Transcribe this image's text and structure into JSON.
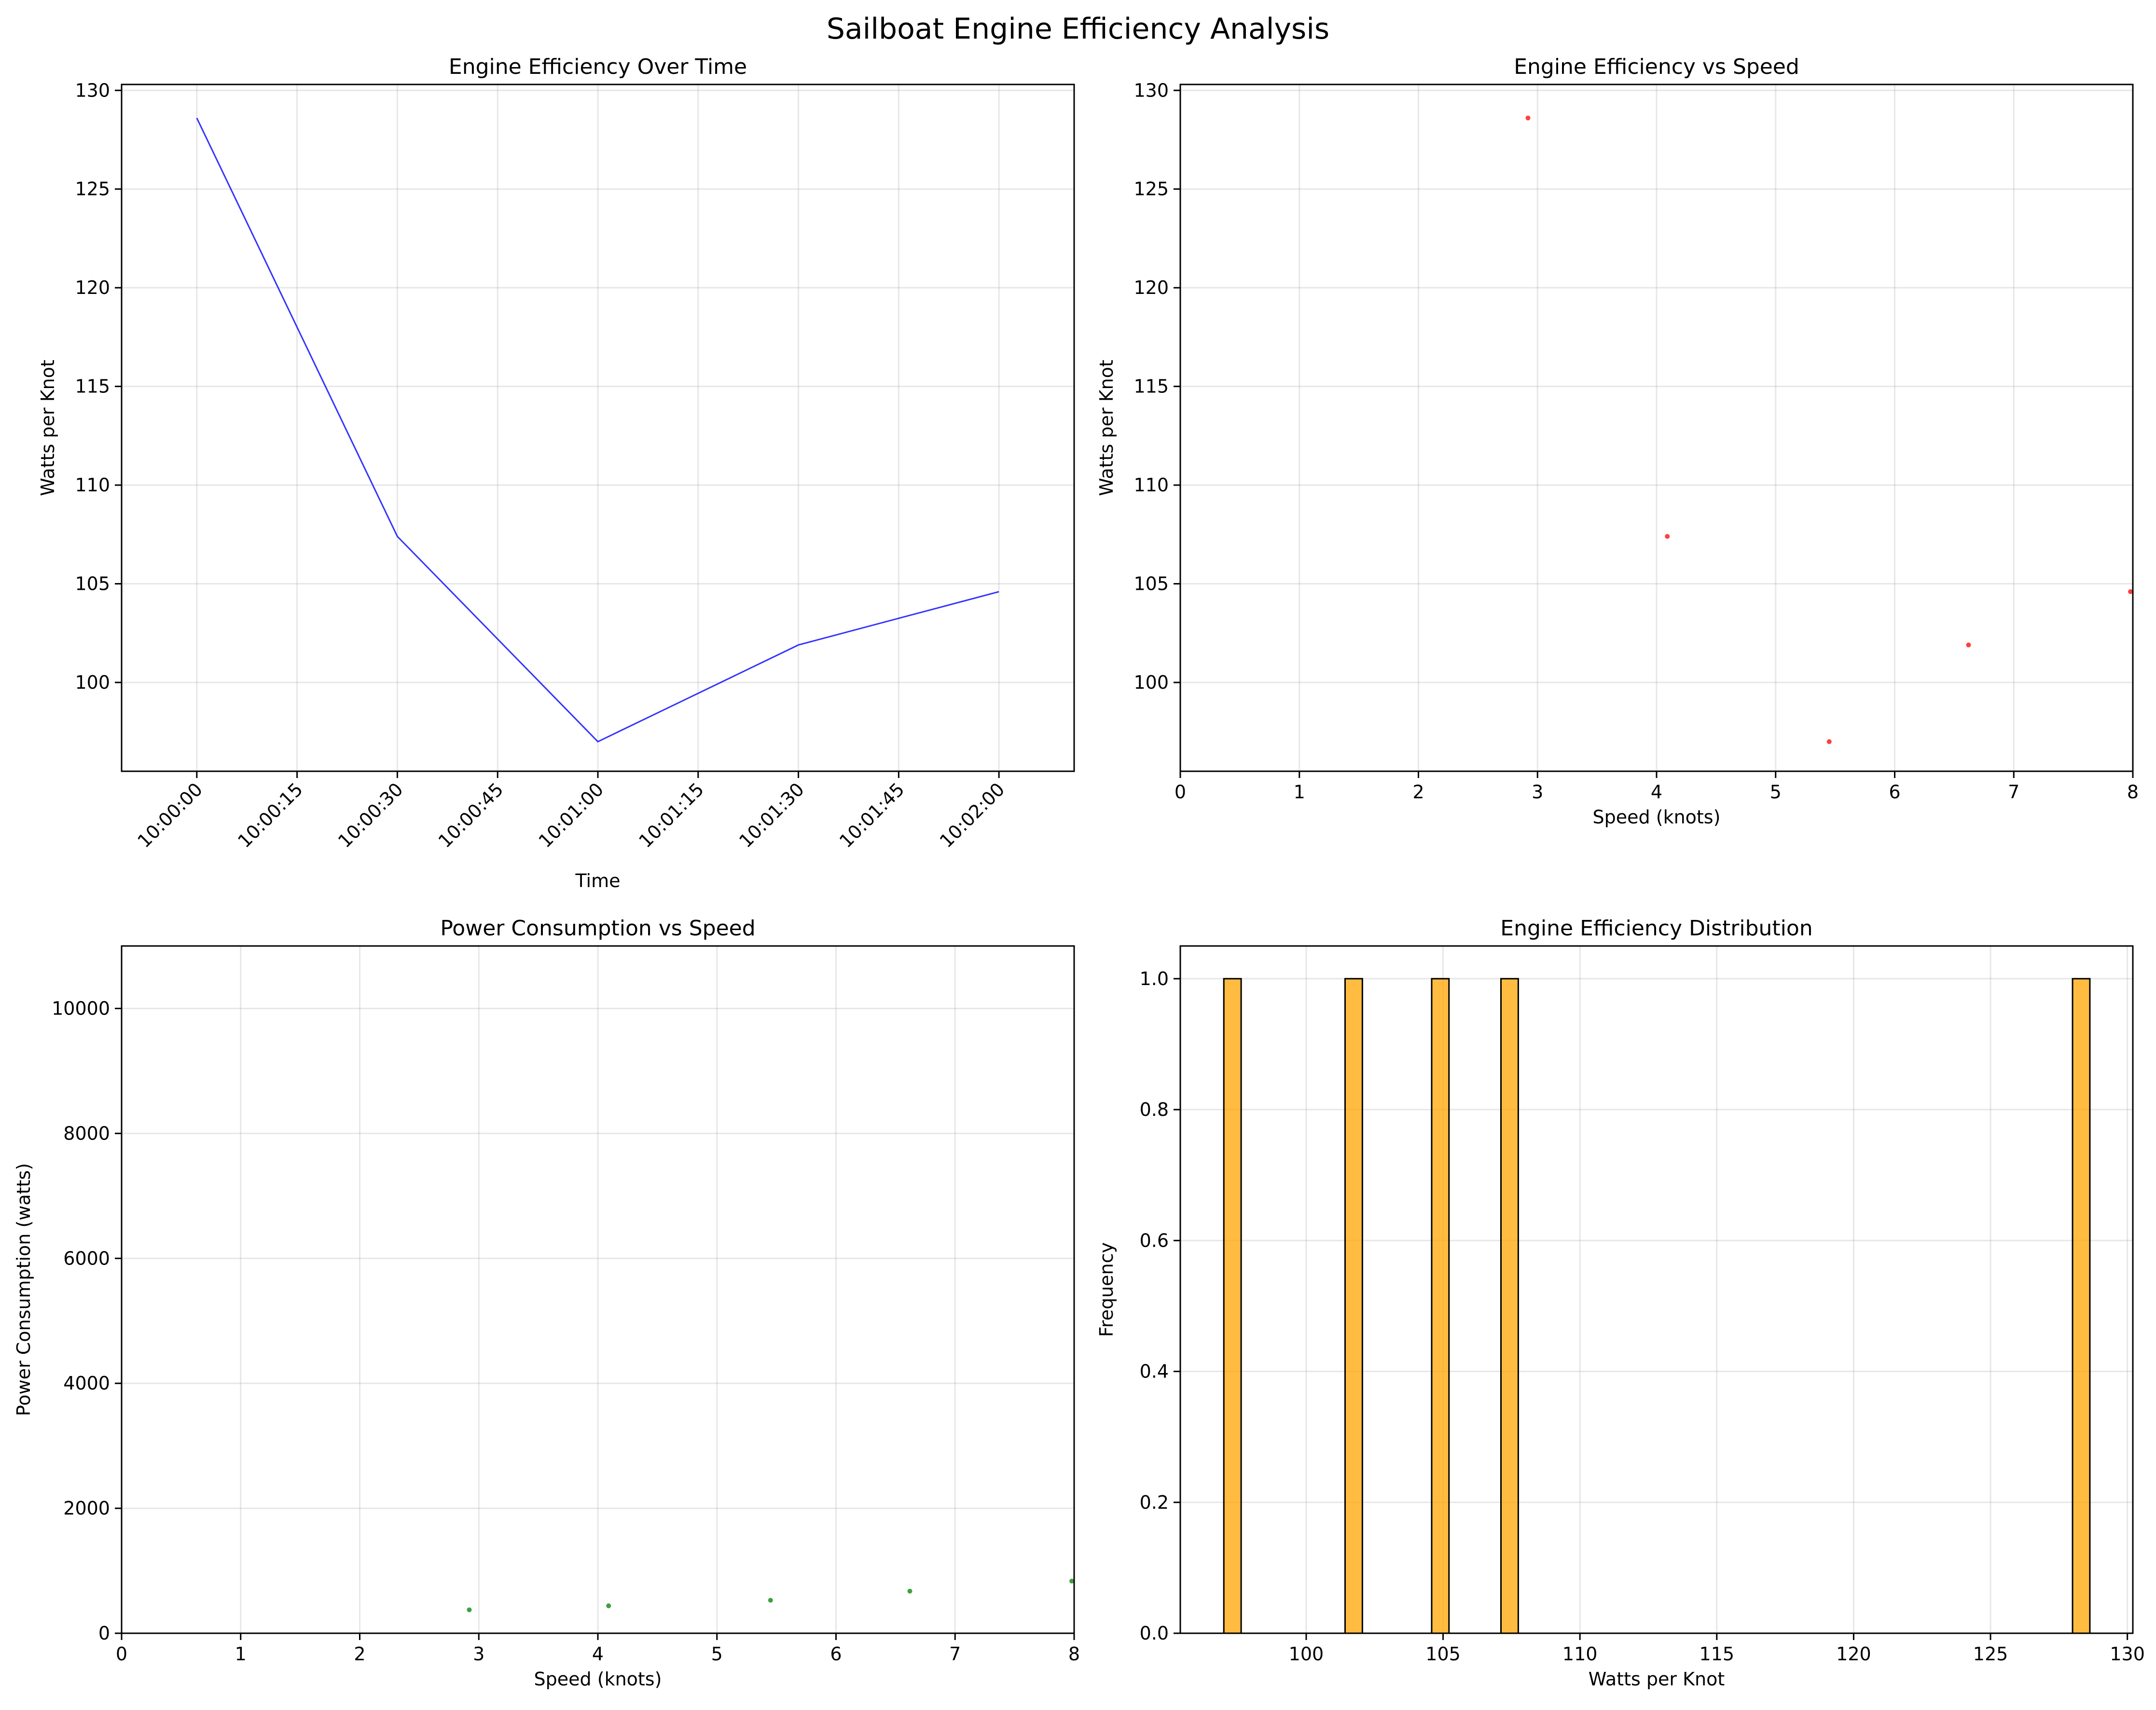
{
  "figure": {
    "title": "Sailboat Engine Efficiency Analysis"
  },
  "chart_data": [
    {
      "type": "line",
      "title": "Engine Efficiency Over Time",
      "xlabel": "Time",
      "ylabel": "Watts per Knot",
      "x": [
        "10:00:00",
        "10:00:30",
        "10:01:00",
        "10:01:30",
        "10:02:00"
      ],
      "xticks": [
        "10:00:00",
        "10:00:15",
        "10:00:30",
        "10:00:45",
        "10:01:00",
        "10:01:15",
        "10:01:30",
        "10:01:45",
        "10:02:00"
      ],
      "xtick_rotation": 45,
      "series": [
        {
          "values": [
            128.6,
            107.4,
            97.0,
            101.9,
            104.6
          ],
          "color": "#0000ff"
        }
      ],
      "ylim": [
        95.5,
        130.3
      ],
      "yticks": [
        100,
        105,
        110,
        115,
        120,
        125,
        130
      ],
      "grid": true
    },
    {
      "type": "scatter",
      "title": "Engine Efficiency vs Speed",
      "xlabel": "Speed (knots)",
      "ylabel": "Watts per Knot",
      "x": [
        2.92,
        4.09,
        5.45,
        6.62,
        7.98
      ],
      "y": [
        128.6,
        107.4,
        97.0,
        101.9,
        104.6
      ],
      "color": "#ff0000",
      "xlim": [
        0,
        8
      ],
      "ylim": [
        95.5,
        130.3
      ],
      "xticks": [
        0,
        1,
        2,
        3,
        4,
        5,
        6,
        7,
        8
      ],
      "yticks": [
        100,
        105,
        110,
        115,
        120,
        125,
        130
      ],
      "grid": true
    },
    {
      "type": "scatter",
      "title": "Power Consumption vs Speed",
      "xlabel": "Speed (knots)",
      "ylabel": "Power Consumption (watts)",
      "x": [
        2.92,
        4.09,
        5.45,
        6.62,
        7.98
      ],
      "y": [
        375,
        439,
        528,
        674,
        835
      ],
      "color": "#008000",
      "xlim": [
        0,
        8
      ],
      "ylim": [
        0,
        11000
      ],
      "xticks": [
        0,
        1,
        2,
        3,
        4,
        5,
        6,
        7,
        8
      ],
      "yticks": [
        0,
        2000,
        4000,
        6000,
        8000,
        10000
      ],
      "grid": true
    },
    {
      "type": "bar",
      "title": "Engine Efficiency Distribution",
      "xlabel": "Watts per Knot",
      "ylabel": "Frequency",
      "bins": {
        "start": 96.99,
        "end": 128.63,
        "count": 50
      },
      "values": [
        97.0,
        101.9,
        104.6,
        107.4,
        128.6
      ],
      "color": "#FFA500",
      "edgecolor": "#000000",
      "xlim": [
        95.4,
        130.2
      ],
      "ylim": [
        0,
        1.05
      ],
      "xticks": [
        100,
        105,
        110,
        115,
        120,
        125,
        130
      ],
      "yticks": [
        "0.0",
        "0.2",
        "0.4",
        "0.6",
        "0.8",
        "1.0"
      ],
      "grid": true
    }
  ]
}
